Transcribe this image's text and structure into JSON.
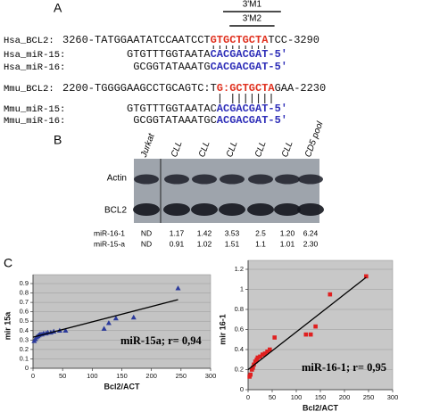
{
  "panel_a": {
    "label": "A",
    "motif_labels": [
      "3'M1",
      "3'M2"
    ],
    "rows": [
      {
        "label": "Hsa_BCL2:",
        "segments": [
          "3260-TATGGAATATCCAATCCT",
          "GTGCTGCTA",
          "TCC-3290"
        ],
        "color": "#e0301e"
      },
      {
        "label": "Hsa_miR-15:",
        "segments": [
          "GTGTTTGGTAATA",
          "CACGACGAT-5'"
        ],
        "color": "#2e2eb8"
      },
      {
        "label": "Hsa_miR-16:",
        "segments": [
          "GCGGTATAAATG",
          "CACGACGAT-5'"
        ],
        "color": "#2e2eb8"
      },
      {
        "label": "Mmu_BCL2:",
        "segments": [
          "2200-TGGGGAAGCCTGCAGTC:T",
          "G:GCTGCTA",
          "GAA-2230"
        ],
        "color": "#e0301e"
      },
      {
        "label": "Mmu_miR-15:",
        "segments": [
          "GTGTTTGGTAATAC",
          "ACGACGAT-5'"
        ],
        "color": "#2e2eb8"
      },
      {
        "label": "Mmu_miR-16:",
        "segments": [
          "GCGGTATAAATGC",
          "ACGACGAT-5'"
        ],
        "color": "#2e2eb8"
      }
    ]
  },
  "panel_b": {
    "label": "B",
    "lanes": [
      "Jurkat",
      "CLL",
      "CLL",
      "CLL",
      "CLL",
      "CLL",
      "CD5 pool"
    ],
    "bands": [
      "Actin",
      "BCL2"
    ],
    "table": [
      {
        "label": "miR-16-1",
        "values": [
          "ND",
          "1.17",
          "1.42",
          "3.53",
          "2.5",
          "1.20",
          "6.24"
        ]
      },
      {
        "label": "miR-15-a",
        "values": [
          "ND",
          "0.91",
          "1.02",
          "1.51",
          "1.1",
          "1.01",
          "2.30"
        ]
      }
    ]
  },
  "panel_c": {
    "label": "C"
  },
  "chart_data": [
    {
      "type": "scatter",
      "xlabel": "Bcl2/ACT",
      "ylabel": "mir 15a",
      "annotation": "miR-15a; r= 0,94",
      "x": [
        2,
        4,
        6,
        8,
        10,
        12,
        15,
        18,
        22,
        25,
        30,
        35,
        45,
        55,
        120,
        128,
        140,
        170,
        245
      ],
      "series": [
        {
          "color": "#2b3a9b",
          "marker": "triangle",
          "values": [
            0.29,
            0.31,
            0.33,
            0.34,
            0.35,
            0.36,
            0.36,
            0.37,
            0.37,
            0.38,
            0.38,
            0.39,
            0.4,
            0.4,
            0.42,
            0.48,
            0.53,
            0.54,
            0.85
          ]
        }
      ],
      "fit": {
        "x": [
          0,
          245
        ],
        "y": [
          0.33,
          0.73
        ],
        "color": "#000000"
      },
      "xlim": [
        0,
        300
      ],
      "ylim": [
        0,
        0.9
      ],
      "xticks": [
        0,
        50,
        100,
        150,
        200,
        250,
        300
      ],
      "yticks": [
        0,
        0.1,
        0.2,
        0.3,
        0.4,
        0.5,
        0.6,
        0.7,
        0.8,
        0.9
      ],
      "grid": true,
      "background": "#c4c4c4"
    },
    {
      "type": "scatter",
      "xlabel": "Bcl2/ACT",
      "ylabel": "mir 16-1",
      "annotation": "miR-16-1; r= 0,95",
      "x": [
        3,
        5,
        8,
        10,
        12,
        15,
        18,
        20,
        25,
        30,
        35,
        40,
        45,
        55,
        120,
        130,
        140,
        170,
        245
      ],
      "series": [
        {
          "color": "#e02020",
          "marker": "square",
          "values": [
            0.13,
            0.15,
            0.2,
            0.22,
            0.25,
            0.28,
            0.3,
            0.32,
            0.33,
            0.35,
            0.36,
            0.38,
            0.4,
            0.52,
            0.55,
            0.55,
            0.63,
            0.95,
            1.13
          ]
        }
      ],
      "fit": {
        "x": [
          0,
          245
        ],
        "y": [
          0.2,
          1.12
        ],
        "color": "#000000"
      },
      "xlim": [
        0,
        300
      ],
      "ylim": [
        0,
        1.2
      ],
      "xticks": [
        0,
        50,
        100,
        150,
        200,
        250,
        300
      ],
      "yticks": [
        0,
        0.2,
        0.4,
        0.6,
        0.8,
        1,
        1.2
      ],
      "grid": true,
      "background": "#c8c8c8"
    }
  ]
}
